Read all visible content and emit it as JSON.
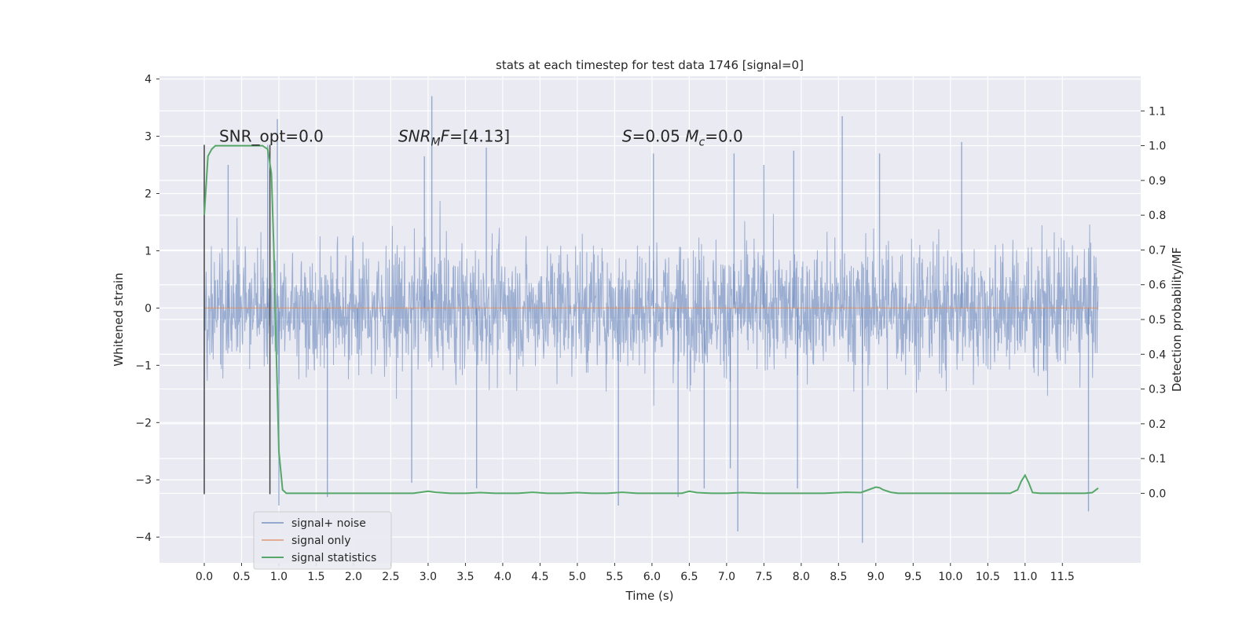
{
  "chart_data": {
    "type": "line",
    "title": "stats at each timestep for test data 1746 [signal=0]",
    "xlabel": "Time (s)",
    "ylabel_left": "Whitened strain",
    "ylabel_right": "Detection probability/MF",
    "xlim": [
      -0.6,
      12.55
    ],
    "ylim_left": [
      -4.45,
      4.05
    ],
    "ylim_right": [
      -0.2,
      1.2
    ],
    "x_ticks": [
      0.0,
      0.5,
      1.0,
      1.5,
      2.0,
      2.5,
      3.0,
      3.5,
      4.0,
      4.5,
      5.0,
      5.5,
      6.0,
      6.5,
      7.0,
      7.5,
      8.0,
      8.5,
      9.0,
      9.5,
      10.0,
      10.5,
      11.0,
      11.5
    ],
    "x_tick_labels": [
      "0.0",
      "0.5",
      "1.0",
      "1.5",
      "2.0",
      "2.5",
      "3.0",
      "3.5",
      "4.0",
      "4.5",
      "5.0",
      "5.5",
      "6.0",
      "6.5",
      "7.0",
      "7.5",
      "8.0",
      "8.5",
      "9.0",
      "9.5",
      "10.0",
      "10.5",
      "11.0",
      "11.5"
    ],
    "y_left_ticks": [
      4,
      3,
      2,
      1,
      0,
      -1,
      -2,
      -3,
      -4
    ],
    "y_left_tick_labels": [
      "4",
      "3",
      "2",
      "1",
      "0",
      "−1",
      "−2",
      "−3",
      "−4"
    ],
    "y_right_ticks": [
      1.1,
      1.0,
      0.9,
      0.8,
      0.7,
      0.6,
      0.5,
      0.4,
      0.3,
      0.2,
      0.1,
      0.0
    ],
    "y_right_tick_labels": [
      "1.1",
      "1.0",
      "0.9",
      "0.8",
      "0.7",
      "0.6",
      "0.5",
      "0.4",
      "0.3",
      "0.2",
      "0.1",
      "0.0"
    ],
    "grid": true,
    "legend_position": "lower-left",
    "series": [
      {
        "name": "signal+ noise",
        "axis": "left",
        "color": "#4c72b0",
        "x_range": [
          0.0,
          11.98
        ],
        "envelope_typical": [
          -1.6,
          1.6
        ],
        "y_min_observed": -4.1,
        "y_max_observed": 3.7,
        "spikes": [
          [
            0.32,
            2.5
          ],
          [
            0.85,
            2.85
          ],
          [
            0.98,
            3.3
          ],
          [
            1.0,
            -3.45
          ],
          [
            1.65,
            -3.3
          ],
          [
            2.05,
            -0.8
          ],
          [
            2.78,
            -3.05
          ],
          [
            2.95,
            2.65
          ],
          [
            3.05,
            3.7
          ],
          [
            3.65,
            -3.15
          ],
          [
            3.78,
            2.8
          ],
          [
            5.55,
            -3.45
          ],
          [
            6.02,
            2.7
          ],
          [
            6.35,
            -3.3
          ],
          [
            6.7,
            -3.15
          ],
          [
            7.05,
            -2.8
          ],
          [
            7.1,
            2.7
          ],
          [
            7.15,
            -3.9
          ],
          [
            7.5,
            2.5
          ],
          [
            7.9,
            2.75
          ],
          [
            7.95,
            -3.15
          ],
          [
            8.55,
            3.35
          ],
          [
            8.82,
            -4.1
          ],
          [
            9.05,
            2.7
          ],
          [
            10.15,
            2.9
          ],
          [
            11.25,
            -1.1
          ],
          [
            11.85,
            -3.55
          ]
        ]
      },
      {
        "name": "signal only",
        "axis": "left",
        "color": "#dd8452",
        "x": [
          0.0,
          11.98
        ],
        "y": [
          0.0,
          0.0
        ]
      },
      {
        "name": "signal statistics",
        "axis": "right",
        "color": "#55a868",
        "x": [
          0.0,
          0.05,
          0.1,
          0.15,
          0.2,
          0.3,
          0.4,
          0.5,
          0.6,
          0.7,
          0.78,
          0.85,
          0.9,
          0.93,
          0.96,
          1.0,
          1.05,
          1.1,
          1.2,
          1.5,
          2.0,
          2.5,
          2.8,
          2.9,
          3.0,
          3.1,
          3.3,
          3.5,
          3.7,
          3.9,
          4.2,
          4.4,
          4.6,
          4.8,
          5.0,
          5.2,
          5.4,
          5.6,
          5.8,
          6.0,
          6.2,
          6.4,
          6.5,
          6.6,
          6.8,
          7.0,
          7.2,
          7.5,
          8.0,
          8.3,
          8.6,
          8.8,
          8.9,
          9.0,
          9.05,
          9.1,
          9.2,
          9.3,
          9.5,
          10.0,
          10.5,
          10.8,
          10.9,
          10.95,
          11.0,
          11.05,
          11.1,
          11.2,
          11.5,
          11.8,
          11.9,
          11.98
        ],
        "y": [
          0.8,
          0.97,
          0.99,
          1.0,
          1.0,
          1.0,
          1.0,
          1.0,
          1.0,
          1.0,
          1.0,
          0.99,
          0.92,
          0.72,
          0.45,
          0.12,
          0.01,
          0.0,
          0.0,
          0.0,
          0.0,
          0.0,
          0.0,
          0.003,
          0.006,
          0.003,
          0.0,
          0.0,
          0.002,
          0.0,
          0.0,
          0.003,
          0.0,
          0.0,
          0.002,
          0.0,
          0.0,
          0.003,
          0.0,
          0.0,
          0.0,
          0.0,
          0.006,
          0.002,
          0.0,
          0.0,
          0.002,
          0.0,
          0.0,
          0.0,
          0.003,
          0.002,
          0.01,
          0.018,
          0.016,
          0.01,
          0.003,
          0.0,
          0.0,
          0.0,
          0.0,
          0.0,
          0.01,
          0.035,
          0.052,
          0.03,
          0.002,
          0.0,
          0.0,
          0.0,
          0.002,
          0.015
        ]
      }
    ],
    "vertical_lines": [
      {
        "x": 0.0,
        "y_from": -3.25,
        "y_to": 2.85,
        "color": "#444444"
      },
      {
        "x": 0.88,
        "y_from": -3.25,
        "y_to": 2.85,
        "color": "#444444"
      }
    ],
    "annotations": [
      {
        "x": 0.2,
        "y": 3.0,
        "parts": [
          {
            "text": "SNR_opt=0.0"
          }
        ]
      },
      {
        "x": 2.6,
        "y": 3.0,
        "parts": [
          {
            "text": "SNR",
            "italic": true
          },
          {
            "text": "M",
            "italic": true,
            "sub": true
          },
          {
            "text": "F",
            "italic": true
          },
          {
            "text": "=[4.13]"
          }
        ]
      },
      {
        "x": 5.6,
        "y": 3.0,
        "parts": [
          {
            "text": "S",
            "italic": true
          },
          {
            "text": "=0.05   "
          },
          {
            "text": "M",
            "italic": true
          },
          {
            "text": "c",
            "italic": true,
            "sub": true
          },
          {
            "text": "=0.0"
          }
        ]
      }
    ]
  }
}
